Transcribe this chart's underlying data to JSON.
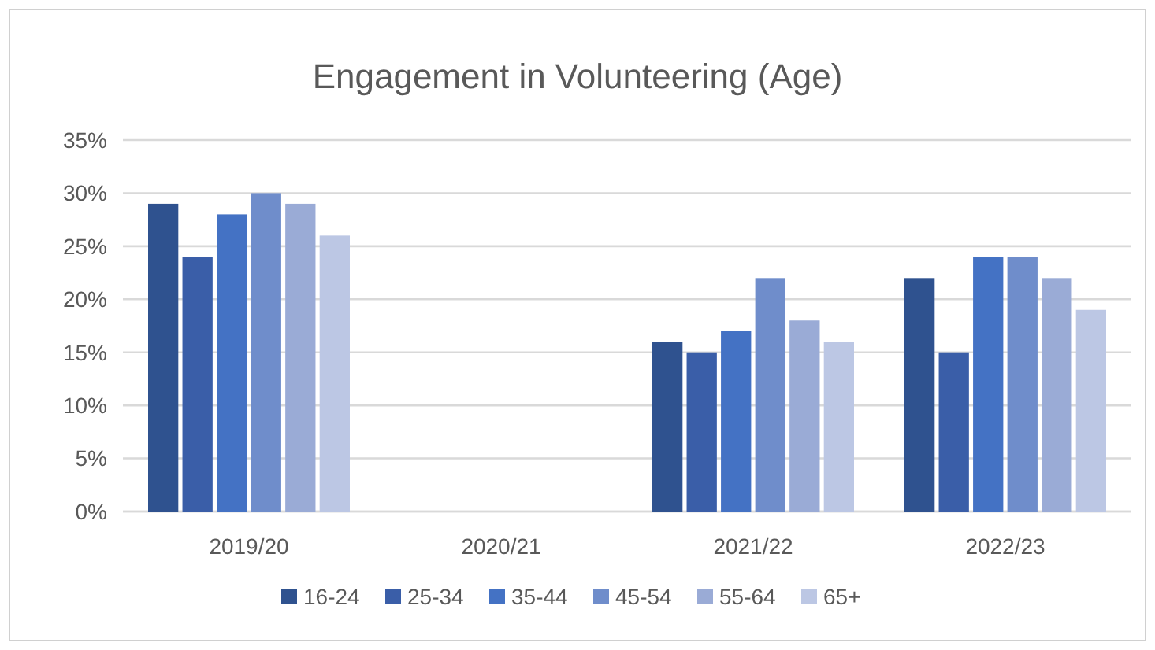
{
  "chart_data": {
    "type": "bar",
    "title": "Engagement in Volunteering (Age)",
    "categories": [
      "2019/20",
      "2020/21",
      "2021/22",
      "2022/23"
    ],
    "series": [
      {
        "name": "16-24",
        "color": "#2f528f",
        "values": [
          29,
          null,
          16,
          22
        ]
      },
      {
        "name": "25-34",
        "color": "#3a5ea8",
        "values": [
          24,
          null,
          15,
          15
        ]
      },
      {
        "name": "35-44",
        "color": "#4472c4",
        "values": [
          28,
          null,
          17,
          24
        ]
      },
      {
        "name": "45-54",
        "color": "#6f8dcb",
        "values": [
          30,
          null,
          22,
          24
        ]
      },
      {
        "name": "55-64",
        "color": "#9aabd6",
        "values": [
          29,
          null,
          18,
          22
        ]
      },
      {
        "name": "65+",
        "color": "#bcc7e4",
        "values": [
          26,
          null,
          16,
          19
        ]
      }
    ],
    "ylim": [
      0,
      35
    ],
    "yticks": [
      {
        "value": 0,
        "label": "0%"
      },
      {
        "value": 5,
        "label": "5%"
      },
      {
        "value": 10,
        "label": "10%"
      },
      {
        "value": 15,
        "label": "15%"
      },
      {
        "value": 20,
        "label": "20%"
      },
      {
        "value": 25,
        "label": "25%"
      },
      {
        "value": 30,
        "label": "30%"
      },
      {
        "value": 35,
        "label": "35%"
      }
    ],
    "grid": "y",
    "legend": "bottom"
  }
}
